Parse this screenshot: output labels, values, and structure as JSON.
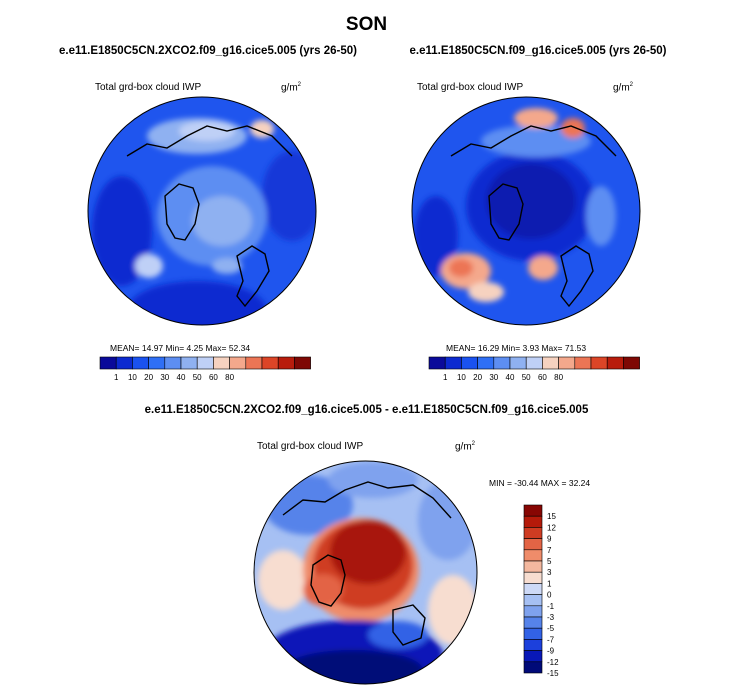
{
  "figure": {
    "title": "SON",
    "colors": {
      "seq": [
        "#0a0a9a",
        "#0c2ad0",
        "#1a52f0",
        "#2f6ff5",
        "#5d8ef2",
        "#8fb1f1",
        "#bfd0f6",
        "#f6d2c0",
        "#f4a88c",
        "#ec7555",
        "#dc4527",
        "#b81c0c",
        "#7e0804"
      ],
      "div": [
        "#000a78",
        "#0818b8",
        "#1c40dc",
        "#3262e6",
        "#5683ea",
        "#7fa2ee",
        "#a6c0f3",
        "#cdd9f6",
        "#f7ddd0",
        "#f4b89f",
        "#ef8c6a",
        "#e36445",
        "#cf3c22",
        "#b51a0a",
        "#870603"
      ],
      "coast": "#000000",
      "fill_white": "#ffffff"
    }
  },
  "chart_data": [
    {
      "type": "heatmap",
      "projection": "north-polar-stereographic",
      "title": "e.e11.E1850C5CN.2XCO2.f09_g16.cice5.005 (yrs 26-50)",
      "field": "Total grd-box cloud IWP",
      "units": "g/m",
      "units_exp": "2",
      "stats_text": "MEAN= 14.97  Min=   4.25  Max=  52.34",
      "mean": 14.97,
      "min": 4.25,
      "max": 52.34,
      "colorbar": {
        "orientation": "horizontal",
        "levels": [
          1,
          10,
          20,
          30,
          40,
          50,
          60,
          80
        ],
        "tick_labels": [
          "1",
          "10",
          "20",
          "30",
          "40",
          "50",
          "60",
          "80"
        ]
      }
    },
    {
      "type": "heatmap",
      "projection": "north-polar-stereographic",
      "title": "e.e11.E1850C5CN.f09_g16.cice5.005 (yrs 26-50)",
      "field": "Total grd-box cloud IWP",
      "units": "g/m",
      "units_exp": "2",
      "stats_text": "MEAN= 16.29  Min=   3.93  Max=  71.53",
      "mean": 16.29,
      "min": 3.93,
      "max": 71.53,
      "colorbar": {
        "orientation": "horizontal",
        "levels": [
          1,
          10,
          20,
          30,
          40,
          50,
          60,
          80
        ],
        "tick_labels": [
          "1",
          "10",
          "20",
          "30",
          "40",
          "50",
          "60",
          "80"
        ]
      }
    },
    {
      "type": "heatmap",
      "projection": "north-polar-stereographic",
      "title": "e.e11.E1850C5CN.2XCO2.f09_g16.cice5.005 - e.e11.E1850C5CN.f09_g16.cice5.005",
      "field": "Total grd-box cloud IWP",
      "units": "g/m",
      "units_exp": "2",
      "stats_text": "MIN = -30.44 MAX =  32.24",
      "min": -30.44,
      "max": 32.24,
      "colorbar": {
        "orientation": "vertical",
        "levels": [
          15,
          12,
          9,
          7,
          5,
          3,
          1,
          0,
          -1,
          -3,
          -5,
          -7,
          -9,
          -12,
          -15
        ],
        "tick_labels": [
          "15",
          "12",
          "9",
          "7",
          "5",
          "3",
          "1",
          "0",
          "-1",
          "-3",
          "-5",
          "-7",
          "-9",
          "-12",
          "-15"
        ]
      }
    }
  ]
}
